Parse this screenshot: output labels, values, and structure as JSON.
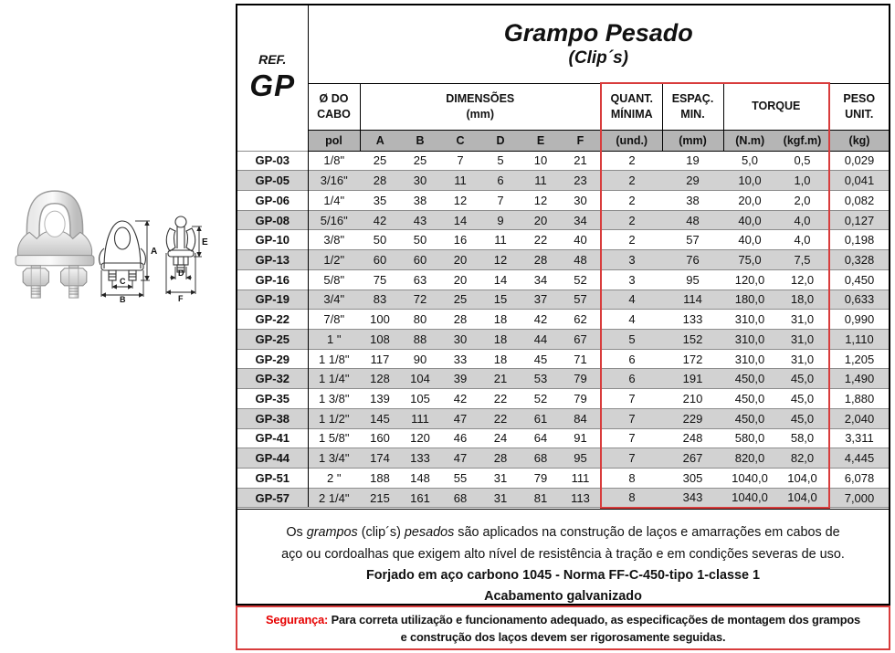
{
  "ref": {
    "label": "REF.",
    "code": "GP"
  },
  "title": {
    "main": "Grampo Pesado",
    "sub": "(Clip´s)"
  },
  "header": {
    "cable": "Ø DO\nCABO",
    "dims": "DIMENSÕES\n(mm)",
    "quant": "QUANT.\nMÍNIMA",
    "espac": "ESPAÇ.\nMIN.",
    "torque": "TORQUE",
    "peso": "PESO\nUNIT."
  },
  "table": {
    "subheader": [
      "pol",
      "A",
      "B",
      "C",
      "D",
      "E",
      "F",
      "(und.)",
      "(mm)",
      "(N.m)",
      "(kgf.m)",
      "(kg)"
    ],
    "rows": [
      [
        "GP-03",
        "1/8\"",
        "25",
        "25",
        "7",
        "5",
        "10",
        "21",
        "2",
        "19",
        "5,0",
        "0,5",
        "0,029"
      ],
      [
        "GP-05",
        "3/16\"",
        "28",
        "30",
        "11",
        "6",
        "11",
        "23",
        "2",
        "29",
        "10,0",
        "1,0",
        "0,041"
      ],
      [
        "GP-06",
        "1/4\"",
        "35",
        "38",
        "12",
        "7",
        "12",
        "30",
        "2",
        "38",
        "20,0",
        "2,0",
        "0,082"
      ],
      [
        "GP-08",
        "5/16\"",
        "42",
        "43",
        "14",
        "9",
        "20",
        "34",
        "2",
        "48",
        "40,0",
        "4,0",
        "0,127"
      ],
      [
        "GP-10",
        "3/8\"",
        "50",
        "50",
        "16",
        "11",
        "22",
        "40",
        "2",
        "57",
        "40,0",
        "4,0",
        "0,198"
      ],
      [
        "GP-13",
        "1/2\"",
        "60",
        "60",
        "20",
        "12",
        "28",
        "48",
        "3",
        "76",
        "75,0",
        "7,5",
        "0,328"
      ],
      [
        "GP-16",
        "5/8\"",
        "75",
        "63",
        "20",
        "14",
        "34",
        "52",
        "3",
        "95",
        "120,0",
        "12,0",
        "0,450"
      ],
      [
        "GP-19",
        "3/4\"",
        "83",
        "72",
        "25",
        "15",
        "37",
        "57",
        "4",
        "114",
        "180,0",
        "18,0",
        "0,633"
      ],
      [
        "GP-22",
        "7/8\"",
        "100",
        "80",
        "28",
        "18",
        "42",
        "62",
        "4",
        "133",
        "310,0",
        "31,0",
        "0,990"
      ],
      [
        "GP-25",
        "1 \"",
        "108",
        "88",
        "30",
        "18",
        "44",
        "67",
        "5",
        "152",
        "310,0",
        "31,0",
        "1,110"
      ],
      [
        "GP-29",
        "1 1/8\"",
        "117",
        "90",
        "33",
        "18",
        "45",
        "71",
        "6",
        "172",
        "310,0",
        "31,0",
        "1,205"
      ],
      [
        "GP-32",
        "1 1/4\"",
        "128",
        "104",
        "39",
        "21",
        "53",
        "79",
        "6",
        "191",
        "450,0",
        "45,0",
        "1,490"
      ],
      [
        "GP-35",
        "1 3/8\"",
        "139",
        "105",
        "42",
        "22",
        "52",
        "79",
        "7",
        "210",
        "450,0",
        "45,0",
        "1,880"
      ],
      [
        "GP-38",
        "1 1/2\"",
        "145",
        "111",
        "47",
        "22",
        "61",
        "84",
        "7",
        "229",
        "450,0",
        "45,0",
        "2,040"
      ],
      [
        "GP-41",
        "1 5/8\"",
        "160",
        "120",
        "46",
        "24",
        "64",
        "91",
        "7",
        "248",
        "580,0",
        "58,0",
        "3,311"
      ],
      [
        "GP-44",
        "1 3/4\"",
        "174",
        "133",
        "47",
        "28",
        "68",
        "95",
        "7",
        "267",
        "820,0",
        "82,0",
        "4,445"
      ],
      [
        "GP-51",
        "2 \"",
        "188",
        "148",
        "55",
        "31",
        "79",
        "111",
        "8",
        "305",
        "1040,0",
        "104,0",
        "6,078"
      ],
      [
        "GP-57",
        "2 1/4\"",
        "215",
        "161",
        "68",
        "31",
        "81",
        "113",
        "8",
        "343",
        "1040,0",
        "104,0",
        "7,000"
      ]
    ]
  },
  "description": {
    "l1_seg1": "Os ",
    "l1_seg2": "grampos",
    "l1_seg3": " (clip´s) ",
    "l1_seg4": "pesados",
    "l1_seg5": " são aplicados na construção de laços e amarrações em cabos de",
    "l2": "aço ou cordoalhas que exigem alto nível de resistência à tração e em condições severas de uso.",
    "bold1": "Forjado em aço carbono 1045 - Norma FF-C-450-tipo 1-classe 1",
    "bold2": "Acabamento galvanizado"
  },
  "seguranca": {
    "label": "Segurança:",
    "line1": " Para correta utilização e funcionamento adequado, as especificações de montagem dos grampos",
    "line2": "e construção dos laços  devem  ser rigorosamente seguidas."
  },
  "diagram": {
    "dims": {
      "a": "A",
      "b": "B",
      "c": "C",
      "d": "D",
      "e": "E",
      "f": "F"
    }
  },
  "colors": {
    "accent_red": "#d83c3c",
    "seguranca_red": "#e60000",
    "header_gray": "#b5b5b5",
    "row_alt_gray": "#d2d2d2"
  }
}
